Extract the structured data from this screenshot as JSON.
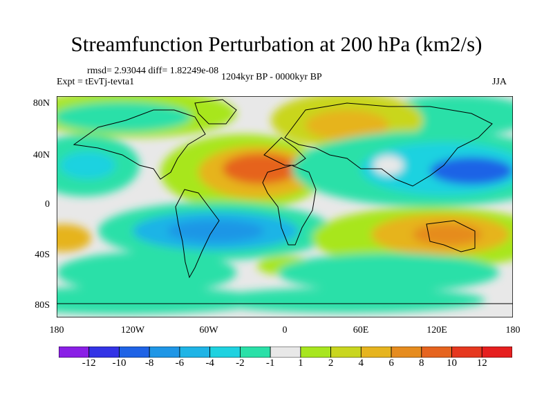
{
  "title": "Streamfunction Perturbation at 200 hPa (km2/s)",
  "stats": "rmsd= 2.93044 diff= 1.82249e-08",
  "expt": "Expt = tEvTj-tevta1",
  "period": "1204kyr BP - 0000kyr BP",
  "season": "JJA",
  "lat_ticks": [
    "80N",
    "40N",
    "0",
    "40S",
    "80S"
  ],
  "lon_ticks": [
    "180",
    "120W",
    "60W",
    "0",
    "60E",
    "120E",
    "180"
  ],
  "colorbar": {
    "labels": [
      "-12",
      "-10",
      "-8",
      "-6",
      "-4",
      "-2",
      "-1",
      "1",
      "2",
      "4",
      "6",
      "8",
      "10",
      "12"
    ],
    "colors": [
      "#8a1fe6",
      "#3333e6",
      "#1f63e6",
      "#1f96e6",
      "#1fb4e6",
      "#1fd2e0",
      "#2ae0a8",
      "#e8e8e8",
      "#a8e61f",
      "#c9d61f",
      "#e6b41f",
      "#e68c1f",
      "#e6641f",
      "#e6381f",
      "#e61f1f"
    ]
  }
}
